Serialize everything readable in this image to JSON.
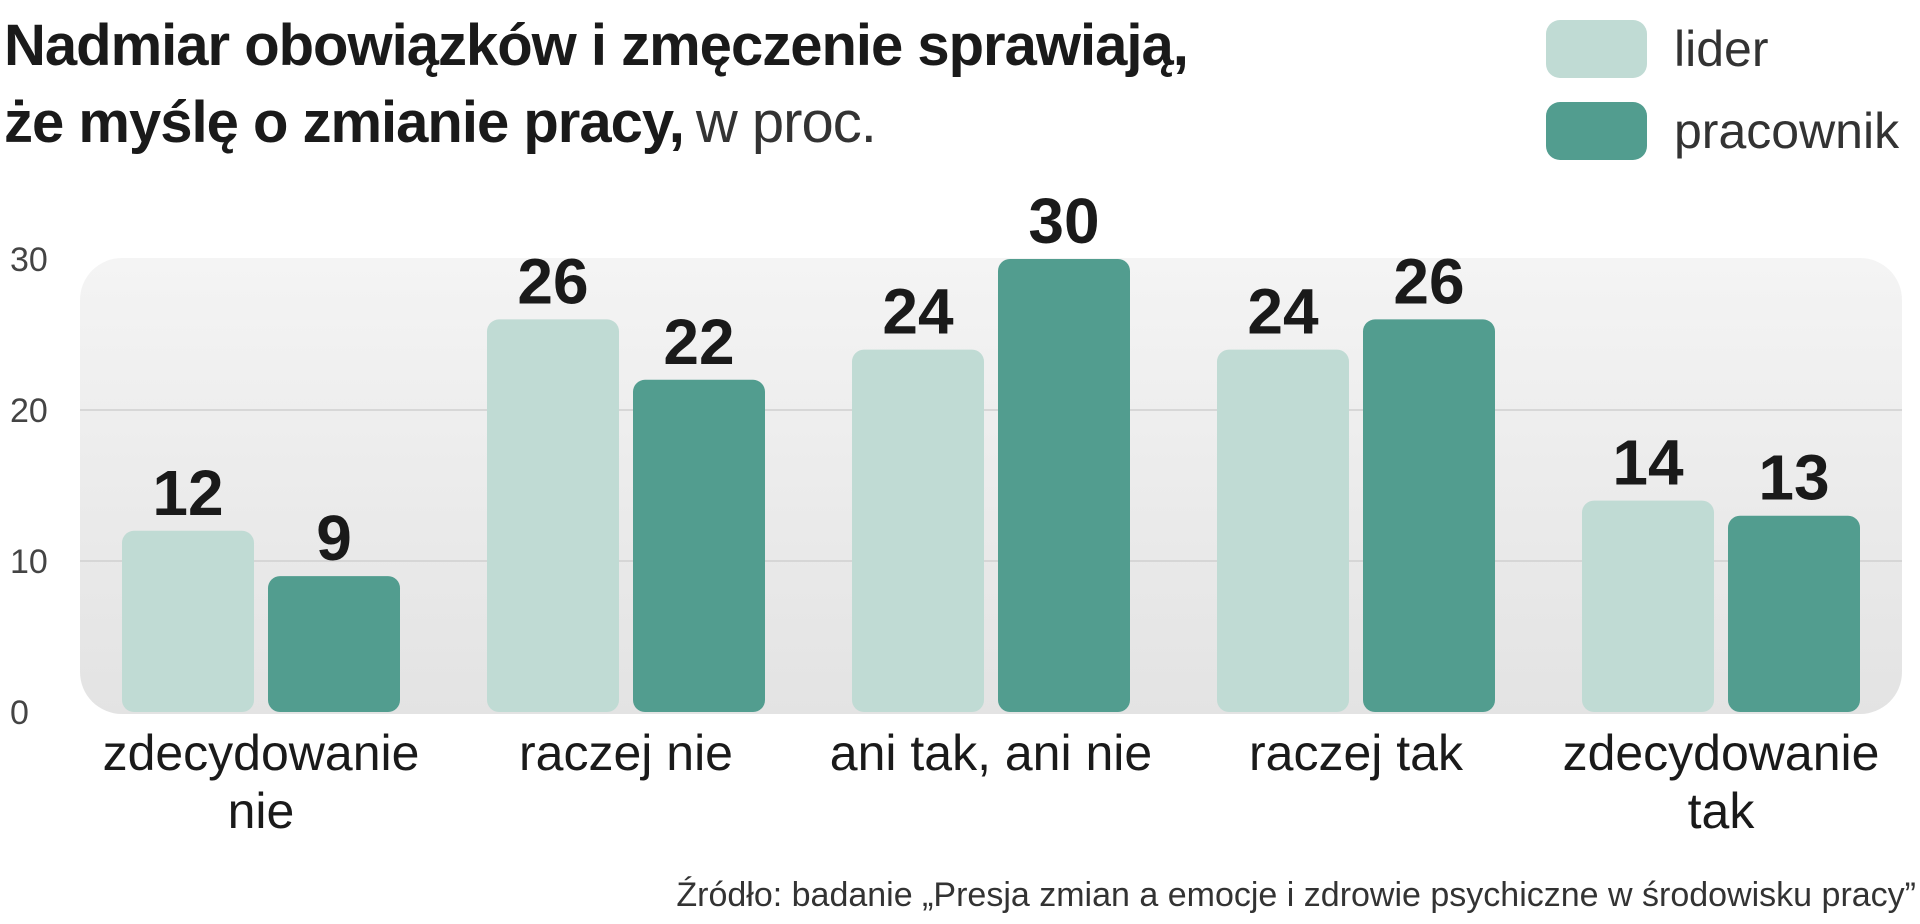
{
  "chart_data": {
    "type": "bar",
    "title_bold_line1": "Nadmiar obowiązków i zmęczenie sprawiają,",
    "title_bold_line2": "że myślę o zmianie pracy,",
    "title_unit": "w proc.",
    "categories": [
      [
        "zdecydowanie",
        "nie"
      ],
      [
        "raczej nie"
      ],
      [
        "ani tak, ani nie"
      ],
      [
        "raczej tak"
      ],
      [
        "zdecydowanie",
        "tak"
      ]
    ],
    "series": [
      {
        "name": "lider",
        "color": "#c0dbd4",
        "values": [
          12,
          26,
          24,
          24,
          14
        ]
      },
      {
        "name": "pracownik",
        "color": "#529d8f",
        "values": [
          9,
          22,
          30,
          26,
          13
        ]
      }
    ],
    "yticks": [
      "0",
      "10",
      "20",
      "30"
    ],
    "ylim": [
      0,
      30
    ],
    "grid": true,
    "legend_position": "top-right",
    "source": "Źródło: badanie „Presja zmian a emocje i zdrowie psychiczne w środowisku pracy”"
  }
}
